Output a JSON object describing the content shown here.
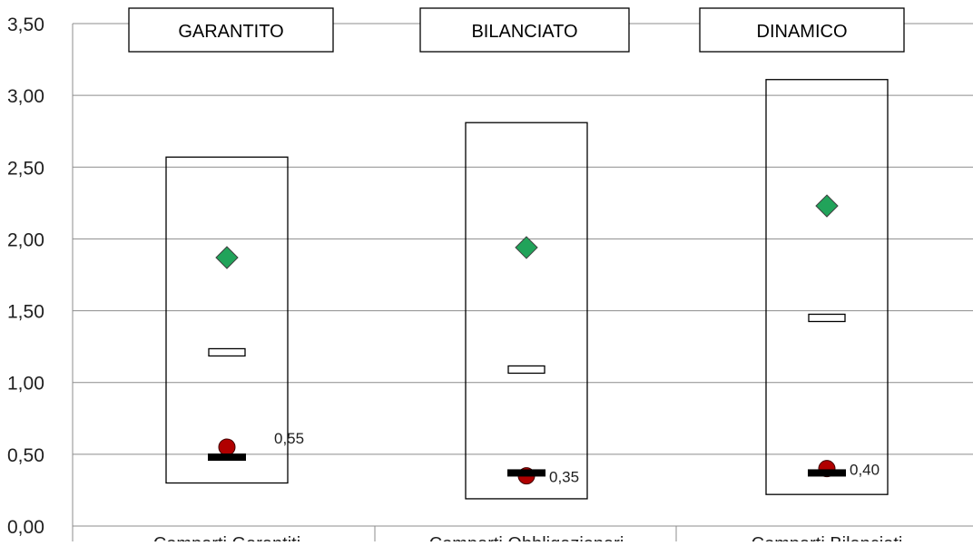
{
  "chart_data": {
    "type": "box",
    "ylim": [
      0,
      3.5
    ],
    "y_ticks": [
      "0,00",
      "0,50",
      "1,00",
      "1,50",
      "2,00",
      "2,50",
      "3,00",
      "3,50"
    ],
    "tick_values": [
      0,
      0.5,
      1.0,
      1.5,
      2.0,
      2.5,
      3.0,
      3.5
    ],
    "grid": true,
    "groups": [
      {
        "header": "GARANTITO",
        "category": "Comparti Garantiti",
        "min": 0.3,
        "max": 2.57,
        "median": 1.21,
        "marker_diamond": 1.87,
        "marker_circle": 0.55,
        "marker_bar": 0.48,
        "label": "0,55"
      },
      {
        "header": "BILANCIATO",
        "category": "Comparti Obbligazionari",
        "min": 0.19,
        "max": 2.81,
        "median": 1.09,
        "marker_diamond": 1.94,
        "marker_circle": 0.35,
        "marker_bar": 0.37,
        "label": "0,35"
      },
      {
        "header": "DINAMICO",
        "category": "Comparti Bilanciati",
        "min": 0.22,
        "max": 3.11,
        "median": 1.45,
        "marker_diamond": 2.23,
        "marker_circle": 0.4,
        "marker_bar": 0.37,
        "label": "0,40"
      }
    ],
    "colors": {
      "diamond": "#21a35a",
      "circle": "#b00000",
      "bar": "#000000",
      "grid": "#8c8c8c",
      "text": "#202020"
    }
  }
}
